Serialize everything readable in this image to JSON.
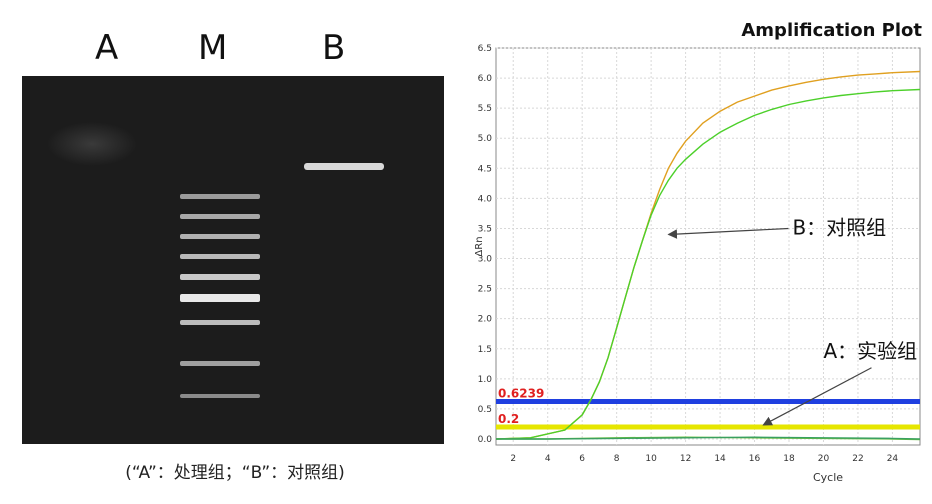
{
  "gel": {
    "lane_labels": [
      "A",
      "M",
      "B"
    ],
    "caption": "(“A”：处理组；“B”：对照组)"
  },
  "chart_data": {
    "type": "line",
    "title": "Amplification Plot",
    "xlabel": "Cycle",
    "ylabel": "ΔRn",
    "xlim": [
      1,
      25.6
    ],
    "ylim": [
      -0.1,
      6.5
    ],
    "x_ticks": [
      2,
      4,
      6,
      8,
      10,
      12,
      14,
      16,
      18,
      20,
      22,
      24
    ],
    "y_ticks": [
      "0.0",
      "0.5",
      "1.0",
      "1.5",
      "2.0",
      "2.5",
      "3.0",
      "3.5",
      "4.0",
      "4.5",
      "5.0",
      "5.5",
      "6.0",
      "6.5"
    ],
    "grid": true,
    "thresholds": [
      {
        "label": "0.6239",
        "value": 0.6239,
        "color": "#1f3fe0"
      },
      {
        "label": "0.2",
        "value": 0.2,
        "color": "#e6e600"
      }
    ],
    "series": [
      {
        "color": "#e0a020",
        "x": [
          1,
          3,
          5,
          6,
          6.5,
          7,
          7.5,
          8,
          8.5,
          9,
          9.5,
          10,
          10.5,
          11,
          11.5,
          12,
          13,
          14,
          15,
          16,
          17,
          18,
          19,
          20,
          21,
          22,
          23,
          24,
          25.6
        ],
        "y": [
          0.0,
          0.02,
          0.15,
          0.4,
          0.65,
          0.95,
          1.35,
          1.85,
          2.35,
          2.85,
          3.3,
          3.75,
          4.15,
          4.5,
          4.75,
          4.95,
          5.25,
          5.45,
          5.6,
          5.7,
          5.8,
          5.87,
          5.93,
          5.98,
          6.02,
          6.05,
          6.07,
          6.09,
          6.11
        ]
      },
      {
        "color": "#4cd02a",
        "x": [
          1,
          3,
          5,
          6,
          6.5,
          7,
          7.5,
          8,
          8.5,
          9,
          9.5,
          10,
          10.5,
          11,
          11.5,
          12,
          13,
          14,
          15,
          16,
          17,
          18,
          19,
          20,
          21,
          22,
          23,
          24,
          25.6
        ],
        "y": [
          0.0,
          0.02,
          0.15,
          0.4,
          0.65,
          0.95,
          1.35,
          1.85,
          2.35,
          2.85,
          3.3,
          3.72,
          4.05,
          4.3,
          4.5,
          4.65,
          4.9,
          5.1,
          5.25,
          5.38,
          5.48,
          5.56,
          5.62,
          5.67,
          5.71,
          5.74,
          5.77,
          5.79,
          5.81
        ]
      },
      {
        "color": "#6cc040",
        "x": [
          1,
          4,
          8,
          12,
          16,
          20,
          24,
          25.6
        ],
        "y": [
          0.0,
          0.0,
          0.02,
          0.03,
          0.02,
          0.01,
          0.0,
          -0.01
        ]
      },
      {
        "color": "#3aa060",
        "x": [
          1,
          4,
          8,
          12,
          16,
          20,
          24,
          25.6
        ],
        "y": [
          0.0,
          0.0,
          0.01,
          0.02,
          0.03,
          0.02,
          0.01,
          0.0
        ]
      }
    ],
    "annotations": [
      {
        "text": "B：对照组",
        "x": 18.2,
        "y": 3.4,
        "arrow_to": [
          10.9,
          3.4
        ]
      },
      {
        "text": "A：实验组",
        "x": 20,
        "y": 1.35,
        "arrow_to": [
          16.4,
          0.2
        ]
      }
    ]
  }
}
